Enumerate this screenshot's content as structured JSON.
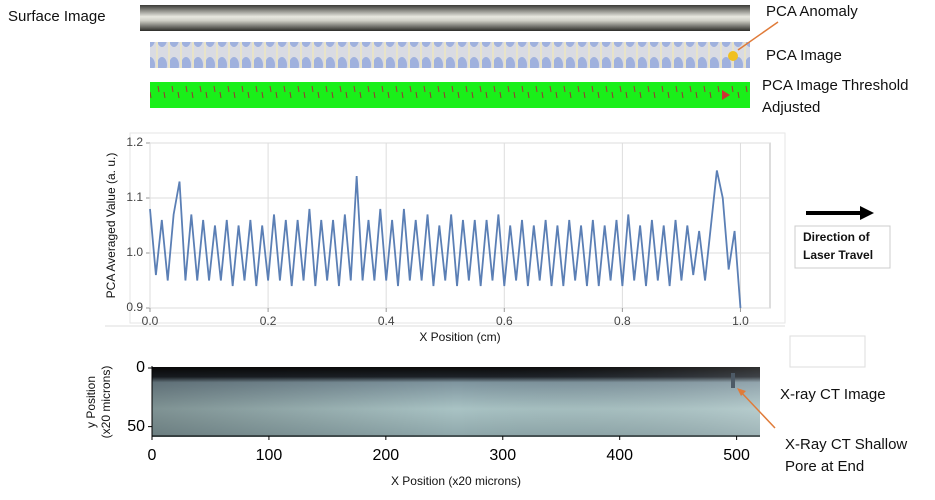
{
  "labels": {
    "surface": "Surface Image",
    "anomaly": "PCA Anomaly",
    "pca_image": "PCA Image",
    "threshold": [
      "PCA Image Threshold",
      "Adjusted"
    ],
    "direction": [
      "Direction of",
      "Laser Travel"
    ],
    "ct_image": "X-ray CT Image",
    "ct_pore": [
      "X-Ray CT Shallow",
      "Pore at End"
    ]
  },
  "chart_data": [
    {
      "type": "line",
      "x_label": "X Position (cm)",
      "y_label": "PCA Averaged Value (a. u.)",
      "xlim": [
        0,
        1.05
      ],
      "ylim": [
        0.9,
        1.2
      ],
      "xticks": [
        {
          "value": 0,
          "label": "0.0"
        },
        0.2,
        0.4,
        0.6,
        0.8,
        {
          "value": 1,
          "label": "1.0"
        }
      ],
      "yticks": [
        0.9,
        {
          "value": 1,
          "label": "1.0"
        },
        1.1,
        1.2
      ],
      "grid": true,
      "x": [
        0,
        0.01,
        0.02,
        0.03,
        0.04,
        0.05,
        0.06,
        0.07,
        0.08,
        0.09,
        0.1,
        0.11,
        0.12,
        0.13,
        0.14,
        0.15,
        0.16,
        0.17,
        0.18,
        0.19,
        0.2,
        0.21,
        0.22,
        0.23,
        0.24,
        0.25,
        0.26,
        0.27,
        0.28,
        0.29,
        0.3,
        0.31,
        0.32,
        0.33,
        0.34,
        0.35,
        0.36,
        0.37,
        0.38,
        0.39,
        0.4,
        0.41,
        0.42,
        0.43,
        0.44,
        0.45,
        0.46,
        0.47,
        0.48,
        0.49,
        0.5,
        0.51,
        0.52,
        0.53,
        0.54,
        0.55,
        0.56,
        0.57,
        0.58,
        0.59,
        0.6,
        0.61,
        0.62,
        0.63,
        0.64,
        0.65,
        0.66,
        0.67,
        0.68,
        0.69,
        0.7,
        0.71,
        0.72,
        0.73,
        0.74,
        0.75,
        0.76,
        0.77,
        0.78,
        0.79,
        0.8,
        0.81,
        0.82,
        0.83,
        0.84,
        0.85,
        0.86,
        0.87,
        0.88,
        0.89,
        0.9,
        0.91,
        0.92,
        0.93,
        0.94,
        0.95,
        0.96,
        0.97,
        0.98,
        0.99,
        1.0
      ],
      "series": [
        {
          "color": "#5b7fb5",
          "values": [
            1.08,
            0.96,
            1.06,
            0.95,
            1.07,
            1.13,
            0.95,
            1.07,
            0.95,
            1.06,
            0.95,
            1.05,
            0.95,
            1.06,
            0.94,
            1.05,
            0.95,
            1.06,
            0.94,
            1.05,
            0.95,
            1.07,
            0.95,
            1.06,
            0.94,
            1.06,
            0.95,
            1.08,
            0.94,
            1.06,
            0.95,
            1.06,
            0.94,
            1.07,
            0.95,
            1.14,
            0.95,
            1.06,
            0.95,
            1.08,
            0.95,
            1.06,
            0.94,
            1.08,
            0.95,
            1.06,
            0.95,
            1.07,
            0.94,
            1.05,
            0.95,
            1.07,
            0.94,
            1.06,
            0.95,
            1.06,
            0.94,
            1.06,
            0.95,
            1.07,
            0.94,
            1.05,
            0.95,
            1.06,
            0.94,
            1.05,
            0.95,
            1.06,
            0.94,
            1.05,
            0.94,
            1.06,
            0.95,
            1.05,
            0.94,
            1.06,
            0.94,
            1.05,
            0.95,
            1.06,
            0.94,
            1.07,
            0.95,
            1.05,
            0.94,
            1.06,
            0.95,
            1.05,
            0.94,
            1.06,
            0.95,
            1.05,
            0.96,
            1.04,
            0.95,
            1.05,
            1.15,
            1.1,
            0.97,
            1.04,
            0.9
          ]
        }
      ]
    },
    {
      "type": "image",
      "x_label": "X Position (x20 microns)",
      "y_label": [
        "y Position",
        "(x20 microns)"
      ],
      "xlim": [
        0,
        520
      ],
      "ylim": [
        0,
        58
      ],
      "y_inverted": true,
      "xticks": [
        0,
        100,
        200,
        300,
        400,
        500
      ],
      "yticks": [
        0,
        50
      ]
    }
  ]
}
